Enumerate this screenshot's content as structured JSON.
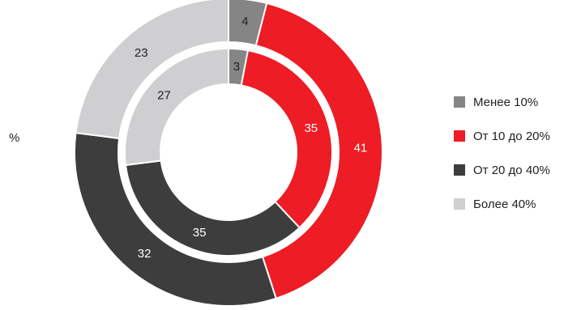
{
  "unit": "%",
  "chart_data": {
    "type": "pie",
    "variant": "nested-donut",
    "categories": [
      "Менее 10%",
      "От 10 до 20%",
      "От 20 до 40%",
      "Более 40%"
    ],
    "colors": [
      "#858585",
      "#ee1c25",
      "#3d3d3d",
      "#cfcfd1"
    ],
    "label_colors": [
      "#222222",
      "#ffffff",
      "#ffffff",
      "#222222"
    ],
    "series": [
      {
        "ring": "outer",
        "values": [
          4,
          41,
          32,
          23
        ]
      },
      {
        "ring": "inner",
        "values": [
          3,
          35,
          35,
          27
        ]
      }
    ],
    "legend_position": "right"
  },
  "legend": {
    "items": [
      {
        "label": "Менее 10%",
        "color": "#858585"
      },
      {
        "label": "От 10 до 20%",
        "color": "#ee1c25"
      },
      {
        "label": "От 20 до 40%",
        "color": "#3d3d3d"
      },
      {
        "label": "Более 40%",
        "color": "#cfcfd1"
      }
    ]
  }
}
